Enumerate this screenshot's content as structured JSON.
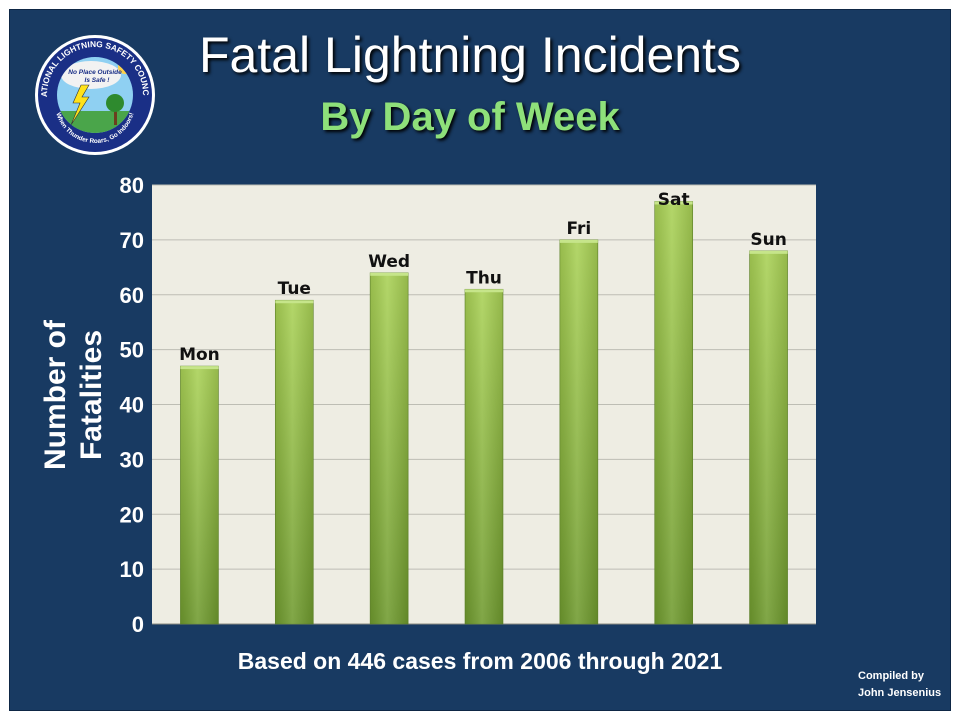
{
  "slide": {
    "title": "Fatal Lightning Incidents",
    "subtitle": "By Day of Week",
    "footnote": "Based on 446 cases from 2006 through 2021",
    "credit_line1": "Compiled by",
    "credit_line2": "John Jensenius"
  },
  "logo": {
    "ring_text": "NATIONAL LIGHTNING SAFETY COUNCIL",
    "bottom_text": "When Thunder Roars, Go Indoors!",
    "cloud_line1": "No Place Outside",
    "cloud_line2": "Is Safe !"
  },
  "colors": {
    "background": "#183a62",
    "plot_area": "#eeede3",
    "bar_top": "#a9d155",
    "bar_bottom": "#6f9a2e",
    "title": "#ffffff",
    "subtitle": "#8ee07a"
  },
  "chart_data": {
    "type": "bar",
    "categories": [
      "Mon",
      "Tue",
      "Wed",
      "Thu",
      "Fri",
      "Sat",
      "Sun"
    ],
    "values": [
      47,
      59,
      64,
      61,
      70,
      77,
      68
    ],
    "ylabel": "Number of Fatalities",
    "ylim": [
      0,
      80
    ],
    "yticks": [
      0,
      10,
      20,
      30,
      40,
      50,
      60,
      70,
      80
    ],
    "grid": true,
    "legend": "none",
    "category_labels_position": "above bars"
  }
}
